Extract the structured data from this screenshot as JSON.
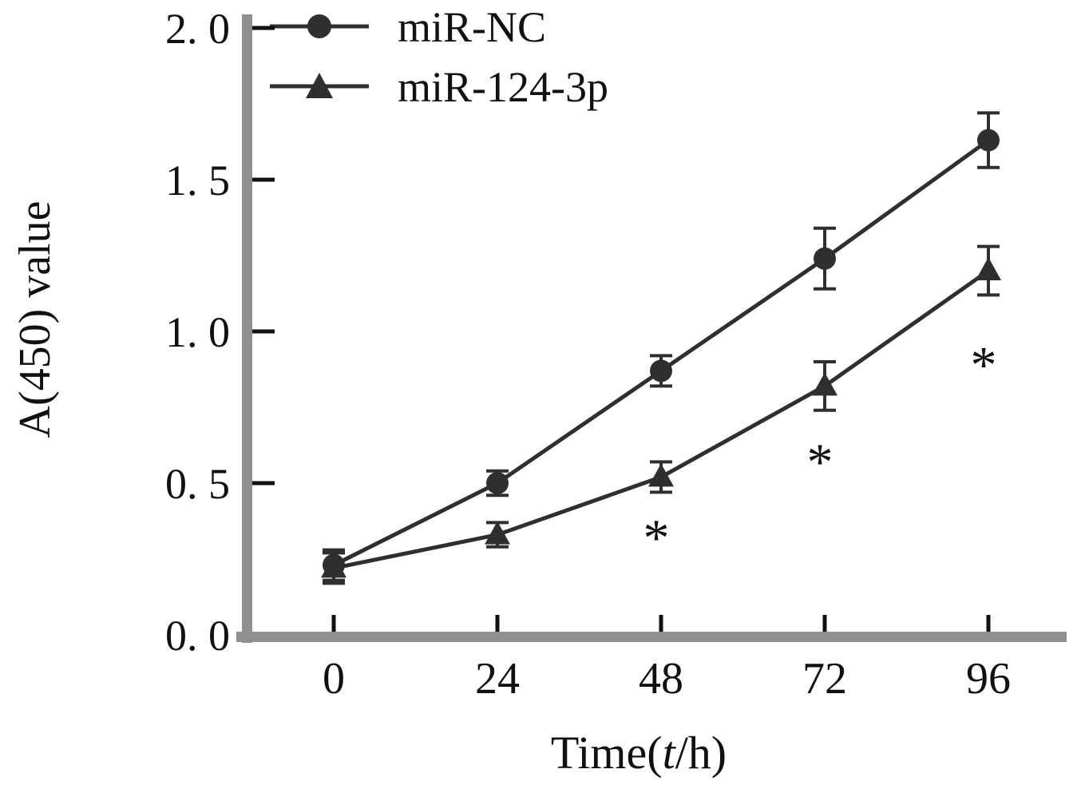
{
  "chart_data": {
    "type": "line",
    "title": "",
    "xlabel": "Time(t/h)",
    "xlabel_parts": {
      "prefix": "Time(",
      "italic": "t",
      "suffix": "/h)"
    },
    "ylabel": "A(450) value",
    "x": [
      0,
      24,
      48,
      72,
      96
    ],
    "x_tick_labels": [
      "0",
      "24",
      "48",
      "72",
      "96"
    ],
    "y_ticks": [
      0.0,
      0.5,
      1.0,
      1.5,
      2.0
    ],
    "y_tick_labels": [
      "0. 0",
      "0. 5",
      "1. 0",
      "1. 5",
      "2. 0"
    ],
    "ylim": [
      0,
      2.0
    ],
    "grid": false,
    "legend_position": "top-left",
    "series": [
      {
        "name": "miR-NC",
        "marker": "circle",
        "values": [
          0.23,
          0.5,
          0.87,
          1.24,
          1.63
        ],
        "errors": [
          0.05,
          0.04,
          0.05,
          0.1,
          0.09
        ]
      },
      {
        "name": "miR-124-3p",
        "marker": "triangle",
        "values": [
          0.22,
          0.33,
          0.52,
          0.82,
          1.2
        ],
        "errors": [
          0.05,
          0.04,
          0.05,
          0.08,
          0.08
        ]
      }
    ],
    "annotations": [
      {
        "text": "*",
        "x": 48,
        "y": 0.32
      },
      {
        "text": "*",
        "x": 72,
        "y": 0.57
      },
      {
        "text": "*",
        "x": 96,
        "y": 0.89
      }
    ],
    "colors": {
      "line": "#2f2f2f",
      "axis": "#8f8f8f",
      "text": "#111111"
    }
  }
}
